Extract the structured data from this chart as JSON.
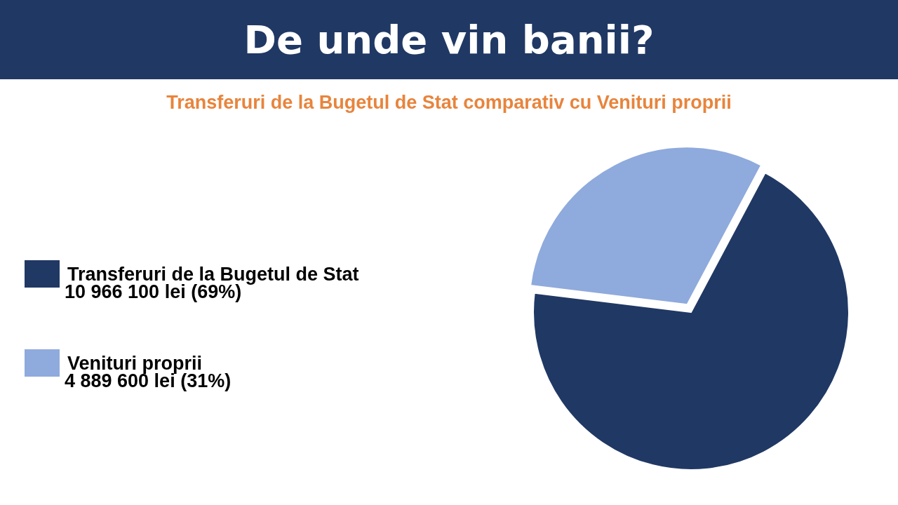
{
  "chart_data": {
    "type": "pie",
    "title": "De unde vin banii?",
    "subtitle": "Transferuri de la Bugetul de Stat comparativ cu Venituri proprii",
    "categories": [
      "Transferuri de la Bugetul de Stat",
      "Venituri proprii"
    ],
    "values": [
      10966100,
      4889600
    ],
    "value_labels": [
      "10 966 100 lei (69%)",
      "4 889 600 lei (31%)"
    ],
    "colors": [
      "#203864",
      "#8faadc"
    ],
    "legend": "left"
  }
}
